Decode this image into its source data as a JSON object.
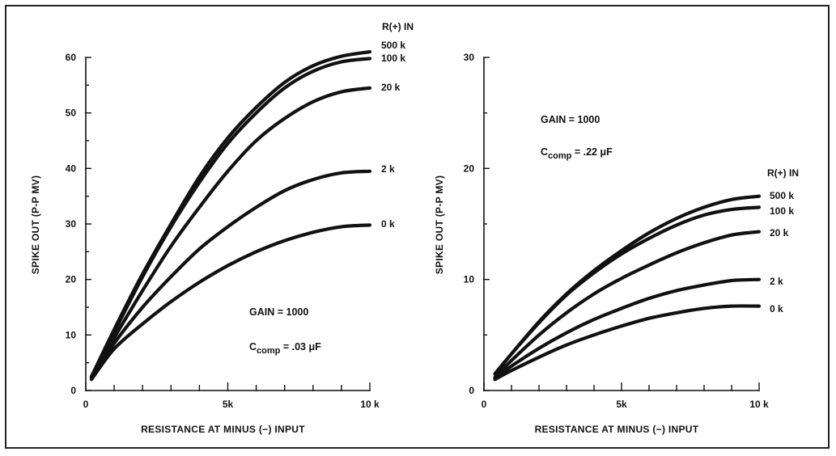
{
  "chart_data": [
    {
      "type": "line",
      "xlabel": "RESISTANCE AT MINUS (−) INPUT",
      "ylabel": "SPIKE OUT (P-P MV)",
      "xlim": [
        0,
        10
      ],
      "ylim": [
        0,
        60
      ],
      "x_tick_values": [
        0,
        1,
        2,
        3,
        4,
        5,
        6,
        7,
        8,
        9,
        10
      ],
      "x_tick_labels": [
        "0",
        "",
        "",
        "",
        "",
        "5k",
        "",
        "",
        "",
        "",
        "10 k"
      ],
      "y_ticks": [
        "0",
        "10",
        "20",
        "30",
        "40",
        "50",
        "60"
      ],
      "y_tick_values": [
        0,
        10,
        20,
        30,
        40,
        50,
        60
      ],
      "legend_title": "R(+) IN",
      "annotations": {
        "gain": "GAIN = 1000",
        "ccomp_main": "C",
        "ccomp_sub": "comp",
        "ccomp_value": " = .03 μF"
      },
      "x": [
        0.2,
        1,
        2,
        3,
        4,
        5,
        6,
        7,
        8,
        9,
        10
      ],
      "series": [
        {
          "name": "500 k",
          "values": [
            2.5,
            11,
            21,
            30,
            38.5,
            45.5,
            51,
            55.5,
            58.5,
            60.2,
            61
          ]
        },
        {
          "name": "100 k",
          "values": [
            2.5,
            10.5,
            20.5,
            29.5,
            37.5,
            44.5,
            50,
            54.5,
            57.5,
            59.2,
            59.8
          ]
        },
        {
          "name": "20 k",
          "values": [
            2.5,
            9.5,
            18,
            26,
            33,
            39.5,
            45,
            49,
            52,
            53.8,
            54.5
          ]
        },
        {
          "name": "2 k",
          "values": [
            2.3,
            8.5,
            15,
            20.5,
            25.5,
            29.5,
            33,
            36,
            38,
            39.2,
            39.5
          ]
        },
        {
          "name": "0 k",
          "values": [
            2.0,
            7.5,
            12,
            16,
            19.5,
            22.5,
            25,
            27,
            28.5,
            29.5,
            29.8
          ]
        }
      ]
    },
    {
      "type": "line",
      "xlabel": "RESISTANCE AT MINUS (−) INPUT",
      "ylabel": "SPIKE OUT (P-P MV)",
      "xlim": [
        0,
        10
      ],
      "ylim": [
        0,
        30
      ],
      "x_tick_values": [
        0,
        1,
        2,
        3,
        4,
        5,
        6,
        7,
        8,
        9,
        10
      ],
      "x_tick_labels": [
        "0",
        "",
        "",
        "",
        "",
        "5k",
        "",
        "",
        "",
        "",
        "10 k"
      ],
      "y_ticks": [
        "0",
        "10",
        "20",
        "30"
      ],
      "y_tick_values": [
        0,
        10,
        20,
        30
      ],
      "legend_title": "R(+) IN",
      "annotations": {
        "gain": "GAIN = 1000",
        "ccomp_main": "C",
        "ccomp_sub": "comp",
        "ccomp_value": " = .22 μF"
      },
      "x": [
        0.4,
        1,
        2,
        3,
        4,
        5,
        6,
        7,
        8,
        9,
        10
      ],
      "series": [
        {
          "name": "500 k",
          "values": [
            1.5,
            3.3,
            6.2,
            8.7,
            10.8,
            12.6,
            14.2,
            15.5,
            16.5,
            17.2,
            17.5
          ]
        },
        {
          "name": "100 k",
          "values": [
            1.5,
            3.3,
            6.1,
            8.6,
            10.6,
            12.3,
            13.7,
            14.9,
            15.8,
            16.3,
            16.5
          ]
        },
        {
          "name": "20 k",
          "values": [
            1.2,
            2.7,
            5.0,
            7.0,
            8.7,
            10.1,
            11.3,
            12.4,
            13.3,
            14.0,
            14.3
          ]
        },
        {
          "name": "2 k",
          "values": [
            1.1,
            2.2,
            3.8,
            5.2,
            6.4,
            7.4,
            8.3,
            9.0,
            9.5,
            9.9,
            10.0
          ]
        },
        {
          "name": "0 k",
          "values": [
            1.0,
            1.8,
            3.0,
            4.1,
            5.0,
            5.8,
            6.5,
            7.0,
            7.4,
            7.6,
            7.6
          ]
        }
      ]
    }
  ]
}
